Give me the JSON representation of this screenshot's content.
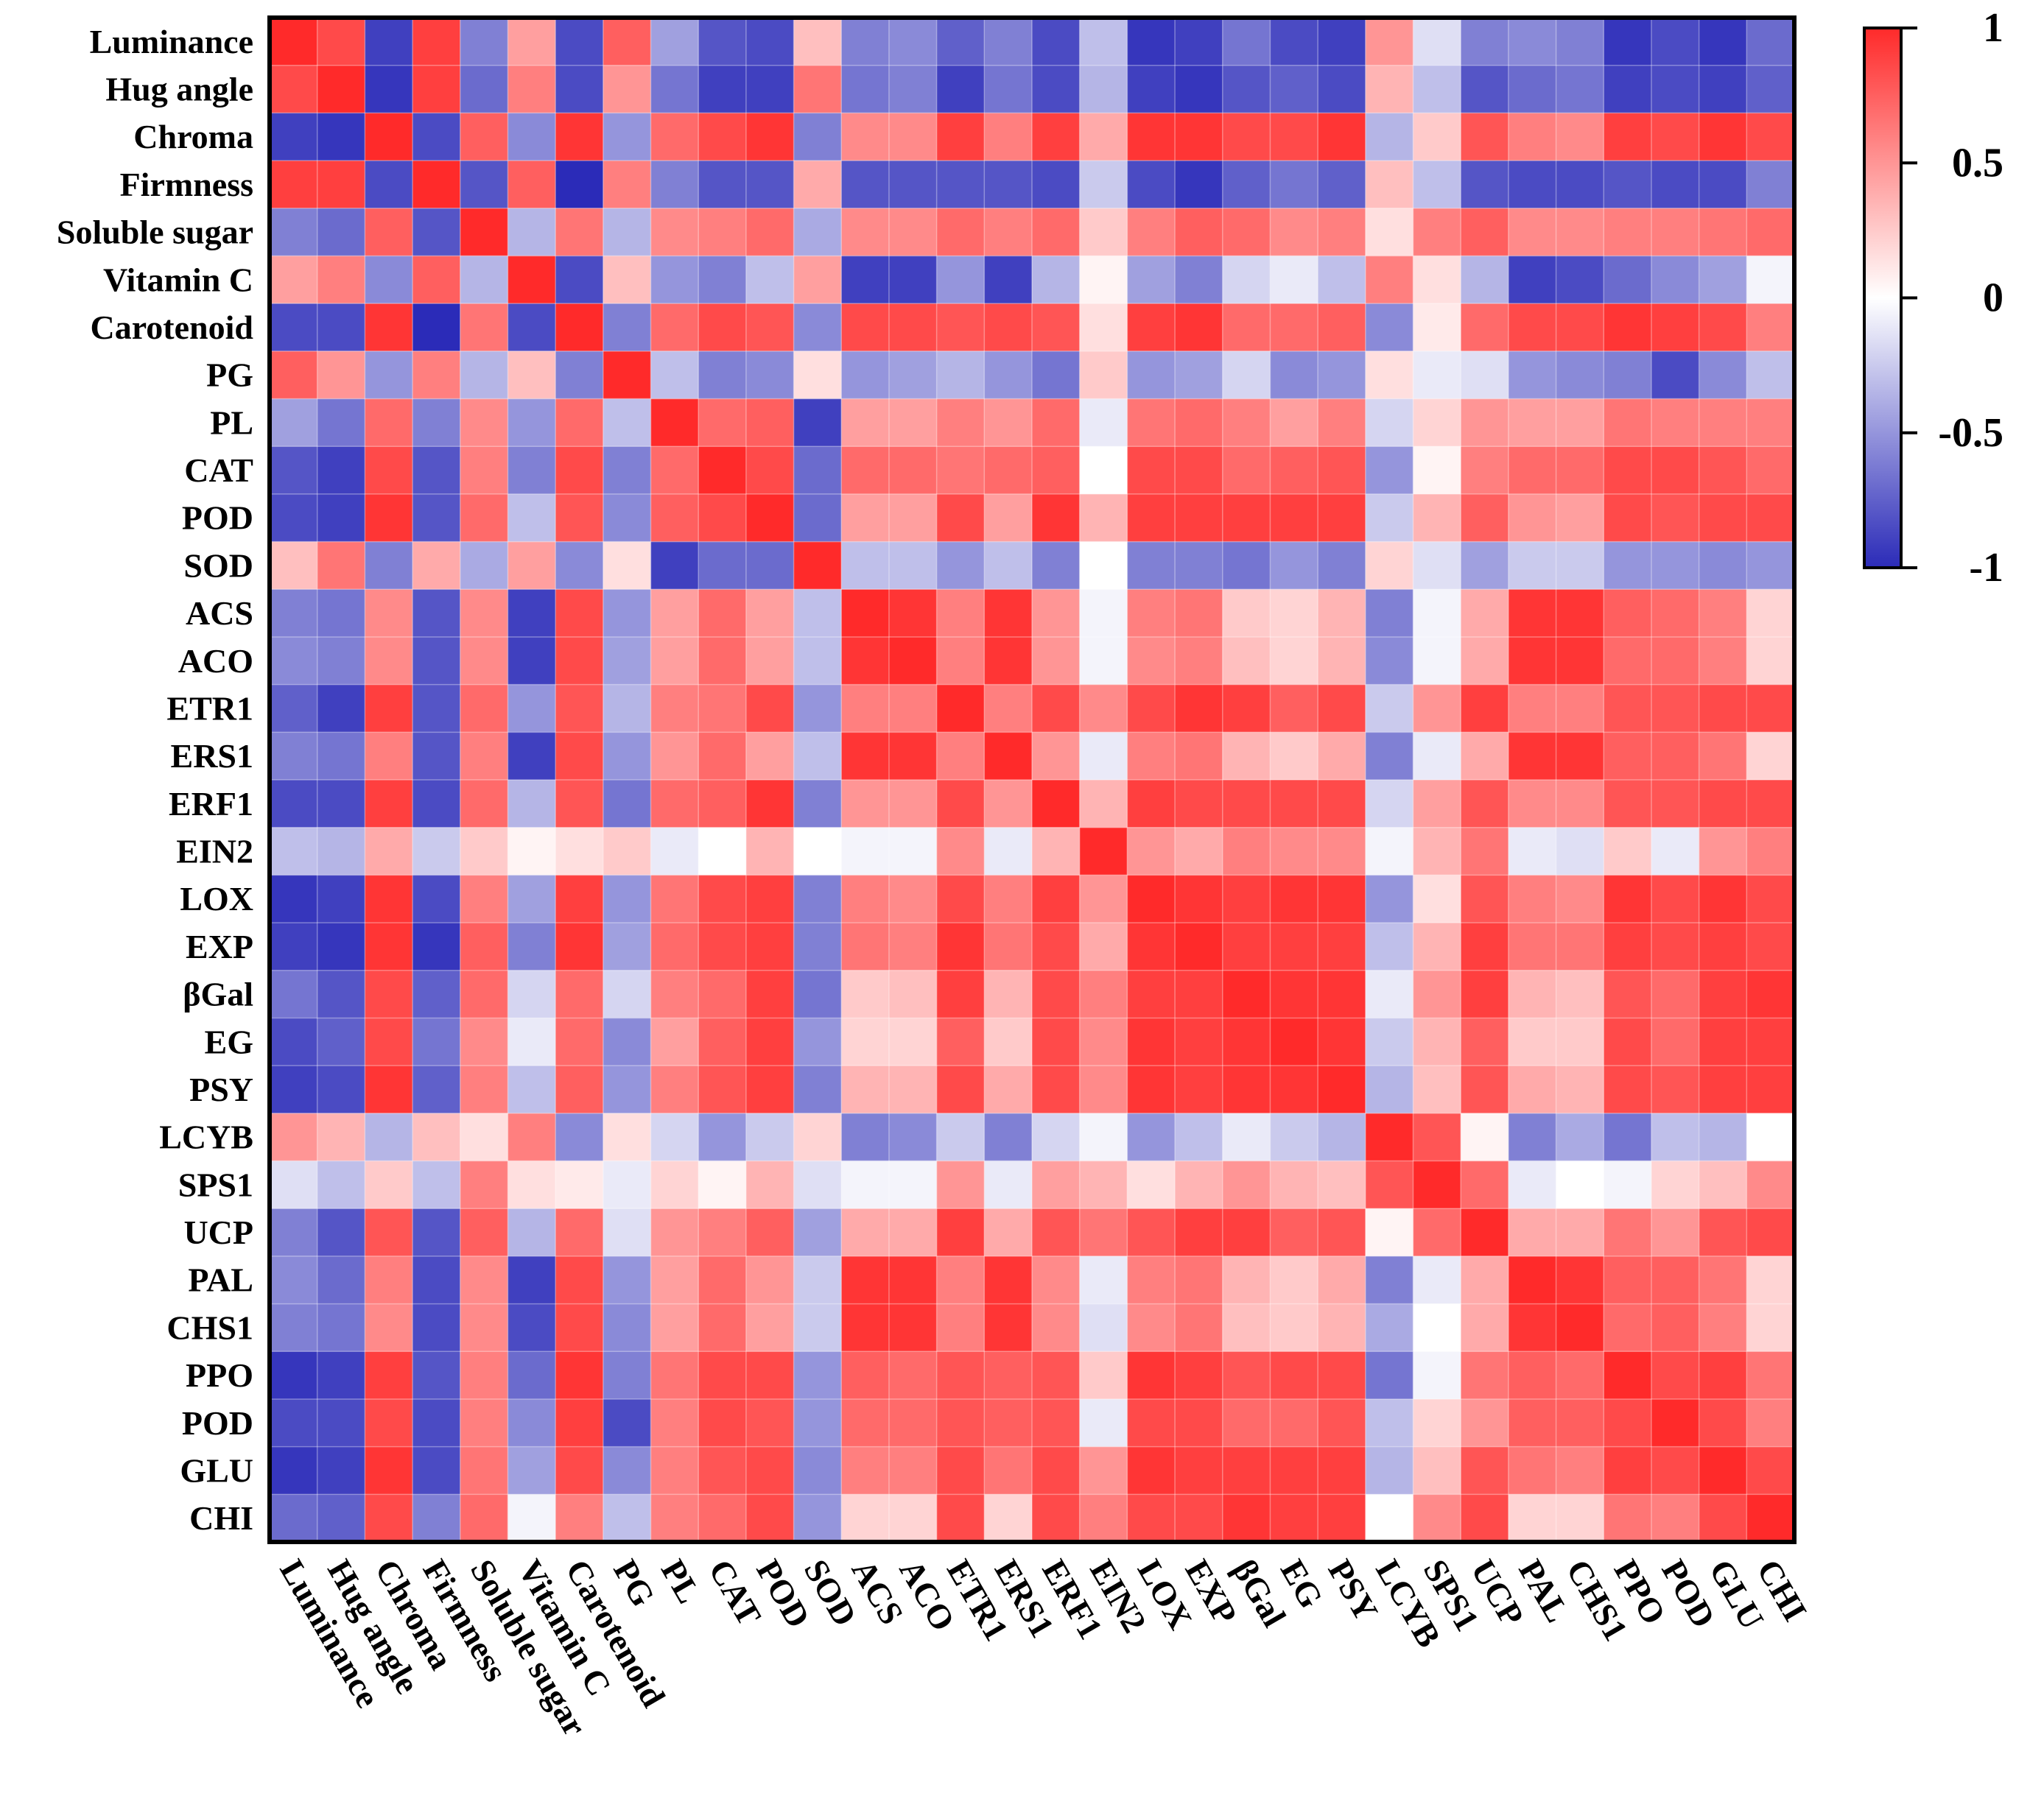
{
  "chart_data": {
    "type": "heatmap",
    "title": "",
    "xlabel": "",
    "ylabel": "",
    "labels": [
      "Luminance",
      "Hug angle",
      "Chroma",
      "Firmness",
      "Soluble sugar",
      "Vitamin C",
      "Carotenoid",
      "PG",
      "PL",
      "CAT",
      "POD",
      "SOD",
      "ACS",
      "ACO",
      "ETR1",
      "ERS1",
      "ERF1",
      "EIN2",
      "LOX",
      "EXP",
      "βGal",
      "EG",
      "PSY",
      "LCYB",
      "SPS1",
      "UCP",
      "PAL",
      "CHS1",
      "PPO",
      "POD",
      "GLU",
      "CHI"
    ],
    "colorbar": {
      "range": [
        -1,
        1
      ],
      "ticks": [
        1,
        0.5,
        0,
        -0.5,
        -1
      ],
      "tick_labels": [
        "1",
        "0.5",
        "0",
        "-0.5",
        "-1"
      ],
      "low_color": "#2b2bb8",
      "mid_color": "#ffffff",
      "high_color": "#ff2a2a"
    },
    "matrix": [
      [
        1,
        0.85,
        -0.9,
        0.9,
        -0.6,
        0.45,
        -0.85,
        0.75,
        -0.45,
        -0.8,
        -0.85,
        0.3,
        -0.6,
        -0.55,
        -0.75,
        -0.6,
        -0.85,
        -0.3,
        -0.95,
        -0.9,
        -0.65,
        -0.85,
        -0.9,
        0.5,
        -0.15,
        -0.6,
        -0.55,
        -0.6,
        -0.95,
        -0.85,
        -0.95,
        -0.7
      ],
      [
        0.85,
        1,
        -0.95,
        0.9,
        -0.7,
        0.6,
        -0.85,
        0.5,
        -0.65,
        -0.9,
        -0.9,
        0.65,
        -0.65,
        -0.6,
        -0.9,
        -0.65,
        -0.85,
        -0.35,
        -0.9,
        -0.95,
        -0.8,
        -0.75,
        -0.85,
        0.35,
        -0.3,
        -0.8,
        -0.7,
        -0.65,
        -0.9,
        -0.85,
        -0.9,
        -0.75
      ],
      [
        -0.9,
        -0.95,
        1,
        -0.85,
        0.75,
        -0.55,
        0.95,
        -0.5,
        0.7,
        0.85,
        0.95,
        -0.6,
        0.55,
        0.55,
        0.9,
        0.6,
        0.9,
        0.4,
        0.95,
        0.95,
        0.85,
        0.85,
        0.95,
        -0.35,
        0.25,
        0.8,
        0.6,
        0.55,
        0.9,
        0.85,
        0.95,
        0.85
      ],
      [
        0.9,
        0.9,
        -0.85,
        1,
        -0.8,
        0.75,
        -1,
        0.6,
        -0.6,
        -0.8,
        -0.8,
        0.4,
        -0.8,
        -0.8,
        -0.8,
        -0.8,
        -0.85,
        -0.25,
        -0.85,
        -0.95,
        -0.75,
        -0.65,
        -0.75,
        0.3,
        -0.3,
        -0.8,
        -0.85,
        -0.85,
        -0.8,
        -0.85,
        -0.85,
        -0.6
      ],
      [
        -0.6,
        -0.7,
        0.75,
        -0.8,
        1,
        -0.35,
        0.65,
        -0.35,
        0.55,
        0.6,
        0.7,
        -0.4,
        0.55,
        0.55,
        0.7,
        0.6,
        0.7,
        0.25,
        0.6,
        0.75,
        0.7,
        0.55,
        0.6,
        0.15,
        0.6,
        0.75,
        0.55,
        0.55,
        0.6,
        0.6,
        0.65,
        0.7
      ],
      [
        0.45,
        0.6,
        -0.55,
        0.75,
        -0.35,
        1,
        -0.85,
        0.3,
        -0.5,
        -0.6,
        -0.3,
        0.45,
        -0.9,
        -0.9,
        -0.5,
        -0.9,
        -0.35,
        0.05,
        -0.45,
        -0.6,
        -0.2,
        -0.1,
        -0.3,
        0.6,
        0.15,
        -0.35,
        -0.9,
        -0.85,
        -0.7,
        -0.55,
        -0.45,
        -0.05
      ],
      [
        -0.85,
        -0.85,
        0.95,
        -1,
        0.65,
        -0.85,
        1,
        -0.6,
        0.7,
        0.85,
        0.8,
        -0.55,
        0.85,
        0.85,
        0.8,
        0.85,
        0.8,
        0.15,
        0.9,
        0.95,
        0.7,
        0.7,
        0.75,
        -0.55,
        0.1,
        0.7,
        0.85,
        0.85,
        0.95,
        0.9,
        0.85,
        0.6
      ],
      [
        0.75,
        0.5,
        -0.5,
        0.6,
        -0.35,
        0.3,
        -0.6,
        1,
        -0.3,
        -0.6,
        -0.55,
        0.15,
        -0.5,
        -0.45,
        -0.35,
        -0.5,
        -0.65,
        0.25,
        -0.5,
        -0.45,
        -0.2,
        -0.55,
        -0.5,
        0.15,
        -0.1,
        -0.15,
        -0.5,
        -0.55,
        -0.6,
        -0.85,
        -0.55,
        -0.3
      ],
      [
        -0.45,
        -0.65,
        0.7,
        -0.6,
        0.55,
        -0.5,
        0.7,
        -0.3,
        1,
        0.7,
        0.75,
        -0.9,
        0.45,
        0.45,
        0.6,
        0.5,
        0.7,
        -0.1,
        0.65,
        0.7,
        0.6,
        0.45,
        0.6,
        -0.2,
        0.2,
        0.5,
        0.45,
        0.45,
        0.65,
        0.6,
        0.6,
        0.6
      ],
      [
        -0.8,
        -0.9,
        0.85,
        -0.8,
        0.6,
        -0.6,
        0.85,
        -0.6,
        0.7,
        1,
        0.85,
        -0.7,
        0.7,
        0.7,
        0.65,
        0.7,
        0.75,
        0,
        0.85,
        0.85,
        0.7,
        0.75,
        0.8,
        -0.5,
        0.05,
        0.6,
        0.7,
        0.7,
        0.85,
        0.85,
        0.8,
        0.7
      ],
      [
        -0.85,
        -0.9,
        0.95,
        -0.8,
        0.7,
        -0.3,
        0.8,
        -0.55,
        0.75,
        0.85,
        1,
        -0.7,
        0.45,
        0.45,
        0.85,
        0.45,
        0.95,
        0.35,
        0.9,
        0.9,
        0.9,
        0.9,
        0.9,
        -0.25,
        0.35,
        0.75,
        0.5,
        0.45,
        0.85,
        0.8,
        0.85,
        0.85
      ],
      [
        0.3,
        0.65,
        -0.6,
        0.4,
        -0.4,
        0.45,
        -0.55,
        0.15,
        -0.9,
        -0.7,
        -0.7,
        1,
        -0.3,
        -0.3,
        -0.5,
        -0.3,
        -0.6,
        0,
        -0.6,
        -0.6,
        -0.65,
        -0.5,
        -0.6,
        0.2,
        -0.15,
        -0.45,
        -0.25,
        -0.25,
        -0.5,
        -0.5,
        -0.55,
        -0.5
      ],
      [
        -0.6,
        -0.65,
        0.55,
        -0.8,
        0.55,
        -0.9,
        0.85,
        -0.5,
        0.45,
        0.7,
        0.45,
        -0.3,
        1,
        0.95,
        0.6,
        0.95,
        0.5,
        -0.05,
        0.6,
        0.65,
        0.25,
        0.2,
        0.35,
        -0.6,
        -0.05,
        0.4,
        0.95,
        0.95,
        0.75,
        0.7,
        0.6,
        0.2
      ],
      [
        -0.55,
        -0.6,
        0.55,
        -0.8,
        0.55,
        -0.9,
        0.85,
        -0.45,
        0.45,
        0.7,
        0.45,
        -0.3,
        0.95,
        1,
        0.6,
        0.95,
        0.5,
        -0.05,
        0.55,
        0.6,
        0.3,
        0.2,
        0.35,
        -0.55,
        -0.05,
        0.4,
        0.95,
        0.95,
        0.7,
        0.7,
        0.6,
        0.2
      ],
      [
        -0.75,
        -0.9,
        0.9,
        -0.8,
        0.7,
        -0.5,
        0.8,
        -0.35,
        0.6,
        0.65,
        0.85,
        -0.5,
        0.6,
        0.6,
        1,
        0.6,
        0.85,
        0.55,
        0.85,
        0.95,
        0.9,
        0.75,
        0.85,
        -0.25,
        0.5,
        0.9,
        0.6,
        0.6,
        0.8,
        0.8,
        0.85,
        0.85
      ],
      [
        -0.6,
        -0.65,
        0.6,
        -0.8,
        0.6,
        -0.9,
        0.85,
        -0.5,
        0.5,
        0.7,
        0.45,
        -0.3,
        0.95,
        0.95,
        0.6,
        1,
        0.5,
        -0.1,
        0.6,
        0.65,
        0.35,
        0.25,
        0.4,
        -0.6,
        -0.1,
        0.4,
        0.95,
        0.95,
        0.75,
        0.75,
        0.65,
        0.2
      ],
      [
        -0.85,
        -0.85,
        0.9,
        -0.85,
        0.7,
        -0.35,
        0.8,
        -0.65,
        0.7,
        0.75,
        0.95,
        -0.6,
        0.5,
        0.5,
        0.85,
        0.5,
        1,
        0.35,
        0.9,
        0.85,
        0.85,
        0.85,
        0.85,
        -0.2,
        0.45,
        0.8,
        0.55,
        0.55,
        0.8,
        0.8,
        0.85,
        0.85
      ],
      [
        -0.3,
        -0.35,
        0.4,
        -0.25,
        0.25,
        0.05,
        0.15,
        0.25,
        -0.1,
        0,
        0.35,
        0,
        -0.05,
        -0.05,
        0.55,
        -0.1,
        0.35,
        1,
        0.5,
        0.4,
        0.6,
        0.55,
        0.55,
        -0.05,
        0.35,
        0.65,
        -0.1,
        -0.15,
        0.25,
        -0.1,
        0.5,
        0.6
      ],
      [
        -0.95,
        -0.9,
        0.95,
        -0.85,
        0.6,
        -0.45,
        0.9,
        -0.5,
        0.65,
        0.85,
        0.9,
        -0.6,
        0.6,
        0.55,
        0.85,
        0.6,
        0.9,
        0.5,
        1,
        0.95,
        0.9,
        0.95,
        0.95,
        -0.5,
        0.15,
        0.8,
        0.6,
        0.55,
        0.95,
        0.85,
        0.95,
        0.85
      ],
      [
        -0.9,
        -0.95,
        0.95,
        -0.95,
        0.75,
        -0.6,
        0.95,
        -0.45,
        0.7,
        0.85,
        0.9,
        -0.6,
        0.65,
        0.6,
        0.95,
        0.65,
        0.85,
        0.4,
        0.95,
        1,
        0.9,
        0.9,
        0.9,
        -0.3,
        0.35,
        0.9,
        0.65,
        0.65,
        0.9,
        0.85,
        0.9,
        0.85
      ],
      [
        -0.65,
        -0.8,
        0.85,
        -0.75,
        0.7,
        -0.2,
        0.7,
        -0.2,
        0.6,
        0.7,
        0.9,
        -0.65,
        0.25,
        0.3,
        0.9,
        0.35,
        0.85,
        0.6,
        0.9,
        0.9,
        1,
        0.95,
        0.95,
        -0.1,
        0.5,
        0.9,
        0.35,
        0.3,
        0.8,
        0.7,
        0.9,
        0.95
      ],
      [
        -0.85,
        -0.75,
        0.85,
        -0.65,
        0.55,
        -0.1,
        0.7,
        -0.55,
        0.45,
        0.75,
        0.9,
        -0.5,
        0.2,
        0.2,
        0.75,
        0.25,
        0.85,
        0.55,
        0.95,
        0.9,
        0.95,
        1,
        0.95,
        -0.25,
        0.35,
        0.75,
        0.25,
        0.25,
        0.85,
        0.7,
        0.9,
        0.9
      ],
      [
        -0.9,
        -0.85,
        0.95,
        -0.75,
        0.6,
        -0.3,
        0.75,
        -0.5,
        0.6,
        0.8,
        0.9,
        -0.6,
        0.35,
        0.35,
        0.85,
        0.4,
        0.85,
        0.55,
        0.95,
        0.9,
        0.95,
        0.95,
        1,
        -0.35,
        0.3,
        0.8,
        0.4,
        0.35,
        0.85,
        0.8,
        0.9,
        0.9
      ],
      [
        0.5,
        0.35,
        -0.35,
        0.3,
        0.15,
        0.6,
        -0.55,
        0.15,
        -0.2,
        -0.5,
        -0.25,
        0.2,
        -0.6,
        -0.55,
        -0.25,
        -0.6,
        -0.2,
        -0.05,
        -0.5,
        -0.3,
        -0.1,
        -0.25,
        -0.35,
        1,
        0.8,
        0.05,
        -0.6,
        -0.4,
        -0.65,
        -0.3,
        -0.35,
        0
      ],
      [
        -0.15,
        -0.3,
        0.25,
        -0.3,
        0.6,
        0.15,
        0.1,
        -0.1,
        0.2,
        0.05,
        0.35,
        -0.15,
        -0.05,
        -0.05,
        0.5,
        -0.1,
        0.45,
        0.35,
        0.15,
        0.35,
        0.5,
        0.35,
        0.3,
        0.8,
        1,
        0.7,
        -0.1,
        0,
        -0.05,
        0.2,
        0.3,
        0.55
      ],
      [
        -0.6,
        -0.8,
        0.8,
        -0.8,
        0.75,
        -0.35,
        0.7,
        -0.15,
        0.5,
        0.6,
        0.75,
        -0.45,
        0.4,
        0.4,
        0.9,
        0.4,
        0.8,
        0.65,
        0.8,
        0.9,
        0.9,
        0.75,
        0.8,
        0.05,
        0.7,
        1,
        0.4,
        0.4,
        0.65,
        0.5,
        0.8,
        0.85
      ],
      [
        -0.55,
        -0.7,
        0.6,
        -0.85,
        0.55,
        -0.9,
        0.85,
        -0.5,
        0.45,
        0.7,
        0.5,
        -0.25,
        0.95,
        0.95,
        0.6,
        0.95,
        0.55,
        -0.1,
        0.6,
        0.65,
        0.35,
        0.25,
        0.4,
        -0.6,
        -0.1,
        0.4,
        1,
        0.95,
        0.75,
        0.75,
        0.65,
        0.2
      ],
      [
        -0.6,
        -0.65,
        0.55,
        -0.85,
        0.55,
        -0.85,
        0.85,
        -0.55,
        0.45,
        0.7,
        0.45,
        -0.25,
        0.95,
        0.95,
        0.6,
        0.95,
        0.55,
        -0.15,
        0.55,
        0.65,
        0.3,
        0.25,
        0.35,
        -0.4,
        0,
        0.4,
        0.95,
        1,
        0.7,
        0.75,
        0.6,
        0.2
      ],
      [
        -0.95,
        -0.9,
        0.9,
        -0.8,
        0.6,
        -0.7,
        0.95,
        -0.6,
        0.65,
        0.85,
        0.85,
        -0.5,
        0.75,
        0.7,
        0.8,
        0.75,
        0.8,
        0.25,
        0.95,
        0.9,
        0.8,
        0.85,
        0.85,
        -0.65,
        -0.05,
        0.65,
        0.75,
        0.7,
        1,
        0.85,
        0.9,
        0.65
      ],
      [
        -0.85,
        -0.85,
        0.85,
        -0.85,
        0.6,
        -0.55,
        0.9,
        -0.85,
        0.6,
        0.85,
        0.8,
        -0.5,
        0.7,
        0.7,
        0.8,
        0.75,
        0.8,
        -0.1,
        0.85,
        0.85,
        0.7,
        0.7,
        0.8,
        -0.3,
        0.2,
        0.5,
        0.75,
        0.75,
        0.85,
        1,
        0.85,
        0.6
      ],
      [
        -0.95,
        -0.9,
        0.95,
        -0.85,
        0.65,
        -0.45,
        0.85,
        -0.55,
        0.6,
        0.8,
        0.85,
        -0.55,
        0.6,
        0.6,
        0.85,
        0.65,
        0.85,
        0.5,
        0.95,
        0.9,
        0.9,
        0.9,
        0.9,
        -0.35,
        0.3,
        0.8,
        0.65,
        0.6,
        0.9,
        0.85,
        1,
        0.85
      ],
      [
        -0.7,
        -0.75,
        0.85,
        -0.6,
        0.7,
        -0.05,
        0.6,
        -0.3,
        0.6,
        0.7,
        0.85,
        -0.5,
        0.2,
        0.2,
        0.85,
        0.2,
        0.85,
        0.6,
        0.85,
        0.85,
        0.95,
        0.9,
        0.9,
        0,
        0.55,
        0.85,
        0.2,
        0.2,
        0.65,
        0.6,
        0.85,
        1
      ]
    ]
  }
}
